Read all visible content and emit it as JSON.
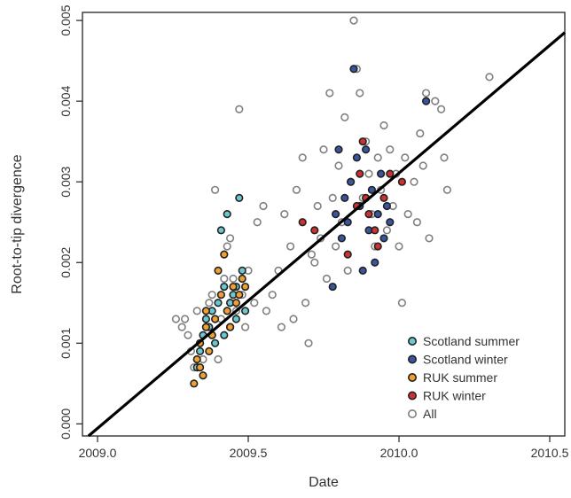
{
  "chart_data": {
    "type": "scatter",
    "title": "",
    "xlabel": "Date",
    "ylabel": "Root-to-tip divergence",
    "xlim": [
      2008.95,
      2010.55
    ],
    "ylim": [
      -0.00015,
      0.0051
    ],
    "x_ticks": [
      2009.0,
      2009.5,
      2010.0,
      2010.5
    ],
    "x_tick_labels": [
      "2009.0",
      "2009.5",
      "2010.0",
      "2010.5"
    ],
    "y_ticks": [
      0.0,
      0.001,
      0.002,
      0.003,
      0.004,
      0.005
    ],
    "y_tick_labels": [
      "0.000",
      "0.001",
      "0.002",
      "0.003",
      "0.004",
      "0.005"
    ],
    "grid": false,
    "legend_position": "bottom-right",
    "regression_line": {
      "x": [
        2008.97,
        2010.55
      ],
      "y": [
        -0.00015,
        0.00485
      ],
      "color": "#000000"
    },
    "series": [
      {
        "name": "All",
        "color": "#ffffff",
        "edge": "#808080",
        "points": [
          [
            2009.26,
            0.0013
          ],
          [
            2009.28,
            0.0012
          ],
          [
            2009.29,
            0.0013
          ],
          [
            2009.3,
            0.0011
          ],
          [
            2009.31,
            0.0009
          ],
          [
            2009.32,
            0.0007
          ],
          [
            2009.33,
            0.0014
          ],
          [
            2009.34,
            0.001
          ],
          [
            2009.35,
            0.0008
          ],
          [
            2009.36,
            0.0012
          ],
          [
            2009.37,
            0.0015
          ],
          [
            2009.38,
            0.0016
          ],
          [
            2009.38,
            0.0011
          ],
          [
            2009.39,
            0.0029
          ],
          [
            2009.4,
            0.0008
          ],
          [
            2009.41,
            0.0013
          ],
          [
            2009.42,
            0.0018
          ],
          [
            2009.43,
            0.0022
          ],
          [
            2009.44,
            0.0023
          ],
          [
            2009.45,
            0.0018
          ],
          [
            2009.46,
            0.0014
          ],
          [
            2009.47,
            0.0039
          ],
          [
            2009.48,
            0.0016
          ],
          [
            2009.49,
            0.0012
          ],
          [
            2009.5,
            0.0019
          ],
          [
            2009.52,
            0.0015
          ],
          [
            2009.53,
            0.0025
          ],
          [
            2009.55,
            0.0027
          ],
          [
            2009.56,
            0.0014
          ],
          [
            2009.58,
            0.0016
          ],
          [
            2009.6,
            0.0019
          ],
          [
            2009.61,
            0.0012
          ],
          [
            2009.62,
            0.0026
          ],
          [
            2009.64,
            0.0022
          ],
          [
            2009.65,
            0.0013
          ],
          [
            2009.66,
            0.0029
          ],
          [
            2009.68,
            0.0033
          ],
          [
            2009.69,
            0.0015
          ],
          [
            2009.7,
            0.001
          ],
          [
            2009.71,
            0.0021
          ],
          [
            2009.72,
            0.002
          ],
          [
            2009.73,
            0.0027
          ],
          [
            2009.74,
            0.0023
          ],
          [
            2009.75,
            0.0034
          ],
          [
            2009.76,
            0.0018
          ],
          [
            2009.77,
            0.0041
          ],
          [
            2009.78,
            0.0028
          ],
          [
            2009.79,
            0.0022
          ],
          [
            2009.8,
            0.0032
          ],
          [
            2009.81,
            0.0025
          ],
          [
            2009.82,
            0.0038
          ],
          [
            2009.83,
            0.0019
          ],
          [
            2009.84,
            0.003
          ],
          [
            2009.85,
            0.005
          ],
          [
            2009.86,
            0.0044
          ],
          [
            2009.87,
            0.0041
          ],
          [
            2009.88,
            0.0028
          ],
          [
            2009.89,
            0.0035
          ],
          [
            2009.9,
            0.0031
          ],
          [
            2009.91,
            0.0026
          ],
          [
            2009.92,
            0.0022
          ],
          [
            2009.93,
            0.0033
          ],
          [
            2009.94,
            0.0029
          ],
          [
            2009.95,
            0.0037
          ],
          [
            2009.96,
            0.0024
          ],
          [
            2009.97,
            0.0034
          ],
          [
            2009.98,
            0.0027
          ],
          [
            2009.99,
            0.0031
          ],
          [
            2010.0,
            0.0022
          ],
          [
            2010.01,
            0.0015
          ],
          [
            2010.02,
            0.0033
          ],
          [
            2010.03,
            0.0026
          ],
          [
            2010.05,
            0.003
          ],
          [
            2010.06,
            0.0025
          ],
          [
            2010.07,
            0.0036
          ],
          [
            2010.08,
            0.0032
          ],
          [
            2010.09,
            0.0041
          ],
          [
            2010.1,
            0.0023
          ],
          [
            2010.12,
            0.004
          ],
          [
            2010.14,
            0.0039
          ],
          [
            2010.15,
            0.0033
          ],
          [
            2010.16,
            0.0029
          ],
          [
            2010.3,
            0.0043
          ]
        ]
      },
      {
        "name": "Scotland summer",
        "color": "#6cc8d0",
        "edge": "#222222",
        "points": [
          [
            2009.33,
            0.0007
          ],
          [
            2009.34,
            0.0009
          ],
          [
            2009.35,
            0.0011
          ],
          [
            2009.36,
            0.0013
          ],
          [
            2009.37,
            0.0012
          ],
          [
            2009.38,
            0.0014
          ],
          [
            2009.39,
            0.001
          ],
          [
            2009.4,
            0.0015
          ],
          [
            2009.41,
            0.0024
          ],
          [
            2009.42,
            0.0017
          ],
          [
            2009.43,
            0.0026
          ],
          [
            2009.44,
            0.0012
          ],
          [
            2009.45,
            0.0016
          ],
          [
            2009.46,
            0.0013
          ],
          [
            2009.47,
            0.0028
          ],
          [
            2009.48,
            0.0019
          ],
          [
            2009.49,
            0.0014
          ],
          [
            2009.42,
            0.0011
          ],
          [
            2009.44,
            0.0015
          ],
          [
            2009.46,
            0.0017
          ]
        ]
      },
      {
        "name": "Scotland winter",
        "color": "#3a55a0",
        "edge": "#222222",
        "points": [
          [
            2009.78,
            0.0017
          ],
          [
            2009.79,
            0.0026
          ],
          [
            2009.8,
            0.0034
          ],
          [
            2009.81,
            0.0023
          ],
          [
            2009.82,
            0.0028
          ],
          [
            2009.83,
            0.0025
          ],
          [
            2009.84,
            0.003
          ],
          [
            2009.85,
            0.0044
          ],
          [
            2009.86,
            0.0033
          ],
          [
            2009.87,
            0.0027
          ],
          [
            2009.88,
            0.0019
          ],
          [
            2009.89,
            0.0034
          ],
          [
            2009.9,
            0.0024
          ],
          [
            2009.91,
            0.0029
          ],
          [
            2009.92,
            0.002
          ],
          [
            2009.93,
            0.0026
          ],
          [
            2009.94,
            0.0031
          ],
          [
            2009.95,
            0.0023
          ],
          [
            2009.96,
            0.0027
          ],
          [
            2009.97,
            0.0025
          ],
          [
            2010.09,
            0.004
          ]
        ]
      },
      {
        "name": "RUK summer",
        "color": "#f0a030",
        "edge": "#222222",
        "points": [
          [
            2009.32,
            0.0005
          ],
          [
            2009.33,
            0.0008
          ],
          [
            2009.34,
            0.001
          ],
          [
            2009.35,
            0.0006
          ],
          [
            2009.36,
            0.0012
          ],
          [
            2009.37,
            0.0009
          ],
          [
            2009.38,
            0.0011
          ],
          [
            2009.39,
            0.0013
          ],
          [
            2009.4,
            0.0019
          ],
          [
            2009.41,
            0.0016
          ],
          [
            2009.42,
            0.0021
          ],
          [
            2009.43,
            0.0014
          ],
          [
            2009.44,
            0.0012
          ],
          [
            2009.45,
            0.0017
          ],
          [
            2009.46,
            0.0015
          ],
          [
            2009.47,
            0.0016
          ],
          [
            2009.48,
            0.0018
          ],
          [
            2009.49,
            0.0017
          ],
          [
            2009.36,
            0.0014
          ],
          [
            2009.34,
            0.0007
          ]
        ]
      },
      {
        "name": "RUK winter",
        "color": "#d03030",
        "edge": "#222222",
        "points": [
          [
            2009.68,
            0.0025
          ],
          [
            2009.72,
            0.0024
          ],
          [
            2009.83,
            0.0021
          ],
          [
            2009.86,
            0.0027
          ],
          [
            2009.87,
            0.0031
          ],
          [
            2009.88,
            0.0035
          ],
          [
            2009.89,
            0.0028
          ],
          [
            2009.9,
            0.0026
          ],
          [
            2009.92,
            0.0024
          ],
          [
            2009.93,
            0.0022
          ],
          [
            2009.95,
            0.0028
          ],
          [
            2009.97,
            0.0031
          ],
          [
            2010.01,
            0.003
          ]
        ]
      }
    ],
    "legend": [
      {
        "label": "Scotland summer",
        "color": "#6cc8d0",
        "edge": "#222222"
      },
      {
        "label": "Scotland winter",
        "color": "#3a55a0",
        "edge": "#222222"
      },
      {
        "label": "RUK summer",
        "color": "#f0a030",
        "edge": "#222222"
      },
      {
        "label": "RUK winter",
        "color": "#d03030",
        "edge": "#222222"
      },
      {
        "label": "All",
        "color": "#ffffff",
        "edge": "#808080"
      }
    ]
  }
}
